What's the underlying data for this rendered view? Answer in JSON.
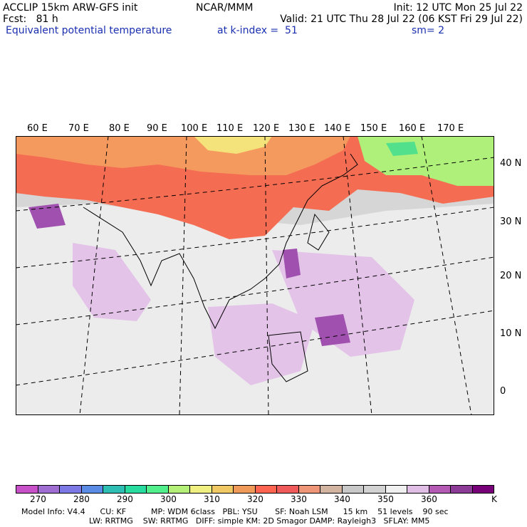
{
  "header": {
    "model": "ACCLIP 15km ARW-GFS init",
    "forecast": "Fcst:   81 h",
    "org": "NCAR/MMM",
    "init": "Init: 12 UTC Mon 25 Jul 22",
    "valid": "Valid: 21 UTC Thu 28 Jul 22 (06 KST Fri 29 Jul 22)",
    "field": "Equivalent potential temperature",
    "level": "at k-index =  51",
    "smoothing": "sm= 2"
  },
  "map": {
    "lon_labels": [
      "60 E",
      "70 E",
      "80 E",
      "90 E",
      "100 E",
      "110 E",
      "120 E",
      "130 E",
      "140 E",
      "150 E",
      "160 E",
      "170 E"
    ],
    "lat_labels": [
      "40 N",
      "30 N",
      "20 N",
      "10 N",
      "0"
    ]
  },
  "colorbar": {
    "colors": [
      "#c850c8",
      "#a06ed2",
      "#7c78e6",
      "#5a8ce6",
      "#2ebeb4",
      "#28dca0",
      "#52f08c",
      "#b4f078",
      "#f0f082",
      "#f0c864",
      "#f09a5a",
      "#ff6450",
      "#f05a5a",
      "#f09678",
      "#d2b4a0",
      "#c8c8c8",
      "#d2d2d2",
      "#f0f0f0",
      "#e1bee6",
      "#b45ab4",
      "#8c3c96",
      "#780078"
    ],
    "labels": [
      "270",
      "280",
      "290",
      "300",
      "310",
      "320",
      "330",
      "340",
      "350",
      "360",
      "K"
    ]
  },
  "model_info": {
    "line1": "Model Info: V4.4      CU: KF          MP: WDM 6class   PBL: YSU       SF: Noah LSM      15 km    51 levels    90 sec",
    "line2": "LW: RRTMG    SW: RRTMG   DIFF: simple KM: 2D Smagor DAMP: Rayleigh3   SFLAY: MM5"
  }
}
